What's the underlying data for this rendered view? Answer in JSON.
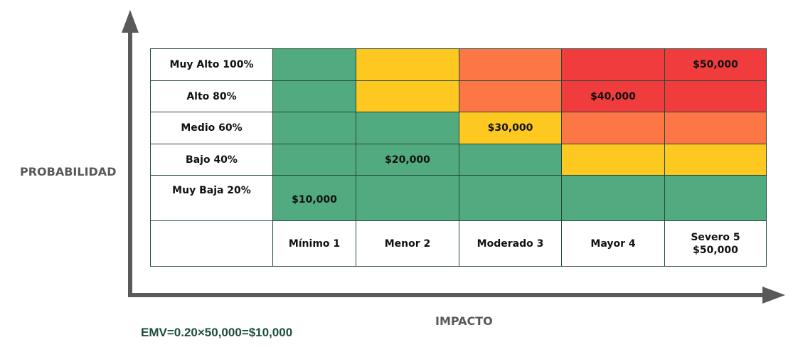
{
  "y_axis_label": "PROBABILIDAD",
  "x_axis_label": "IMPACTO",
  "emv_formula": "EMV=0.20×50,000=$10,000",
  "colors": {
    "green": "#52aa80",
    "yellow": "#fdc820",
    "orange": "#fd7646",
    "red": "#f13c3e",
    "axis": "#595959",
    "border": "#244a3c"
  },
  "probability_rows": [
    {
      "label": "Muy Alto 100%",
      "cells": [
        "green",
        "yellow",
        "orange",
        "red",
        "red"
      ],
      "values": [
        "",
        "",
        "",
        "",
        "$50,000"
      ]
    },
    {
      "label": "Alto 80%",
      "cells": [
        "green",
        "yellow",
        "orange",
        "red",
        "red"
      ],
      "values": [
        "",
        "",
        "",
        "$40,000",
        ""
      ]
    },
    {
      "label": "Medio 60%",
      "cells": [
        "green",
        "green",
        "yellow",
        "orange",
        "orange"
      ],
      "values": [
        "",
        "",
        "$30,000",
        "",
        ""
      ]
    },
    {
      "label": "Bajo 40%",
      "cells": [
        "green",
        "green",
        "green",
        "yellow",
        "yellow"
      ],
      "values": [
        "",
        "$20,000",
        "",
        "",
        ""
      ]
    },
    {
      "label": "Muy Baja 20%",
      "cells": [
        "green",
        "green",
        "green",
        "green",
        "green"
      ],
      "values": [
        "$10,000",
        "",
        "",
        "",
        ""
      ]
    }
  ],
  "impact_columns": [
    {
      "label": "Mínimo 1",
      "sublabel": ""
    },
    {
      "label": "Menor 2",
      "sublabel": ""
    },
    {
      "label": "Moderado 3",
      "sublabel": ""
    },
    {
      "label": "Mayor 4",
      "sublabel": ""
    },
    {
      "label": "Severo 5",
      "sublabel": "$50,000"
    }
  ]
}
